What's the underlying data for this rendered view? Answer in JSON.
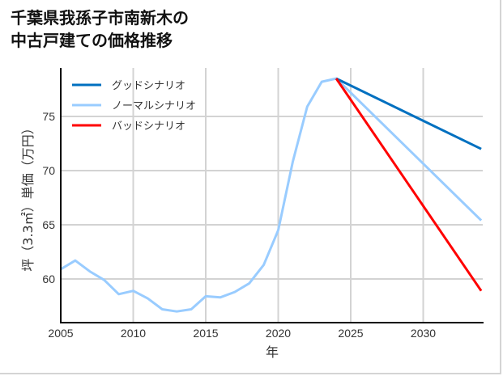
{
  "title": {
    "line1": "千葉県我孫子市南新木の",
    "line2": "中古戸建ての価格推移"
  },
  "axes": {
    "xlabel": "年",
    "ylabel": "坪（3.3㎡）単価（万円）",
    "xticks": [
      "2005",
      "2010",
      "2015",
      "2020",
      "2025",
      "2030"
    ],
    "yticks": [
      "60",
      "65",
      "70",
      "75"
    ]
  },
  "legend": [
    {
      "label": "グッドシナリオ",
      "color": "#0070C0"
    },
    {
      "label": "ノーマルシナリオ",
      "color": "#99CCFF"
    },
    {
      "label": "バッドシナリオ",
      "color": "#FF0000"
    }
  ],
  "chart_data": {
    "type": "line",
    "title": "千葉県我孫子市南新木の中古戸建ての価格推移",
    "xlabel": "年",
    "ylabel": "坪（3.3㎡）単価（万円）",
    "xlim": [
      2005,
      2034
    ],
    "ylim": [
      56,
      80
    ],
    "grid": true,
    "legend_position": "upper left",
    "series": [
      {
        "name": "ノーマルシナリオ",
        "color": "#99CCFF",
        "x": [
          2005,
          2006,
          2007,
          2008,
          2009,
          2010,
          2011,
          2012,
          2013,
          2014,
          2015,
          2016,
          2017,
          2018,
          2019,
          2020,
          2021,
          2022,
          2023,
          2024,
          2034
        ],
        "values": [
          60.9,
          61.7,
          60.7,
          59.9,
          58.6,
          58.9,
          58.2,
          57.2,
          57.0,
          57.2,
          58.4,
          58.3,
          58.8,
          59.6,
          61.3,
          64.5,
          70.8,
          75.9,
          78.2,
          78.5,
          65.4
        ]
      },
      {
        "name": "グッドシナリオ",
        "color": "#0070C0",
        "x": [
          2024,
          2034
        ],
        "values": [
          78.5,
          72.0
        ]
      },
      {
        "name": "バッドシナリオ",
        "color": "#FF0000",
        "x": [
          2024,
          2034
        ],
        "values": [
          78.5,
          58.9
        ]
      }
    ]
  }
}
